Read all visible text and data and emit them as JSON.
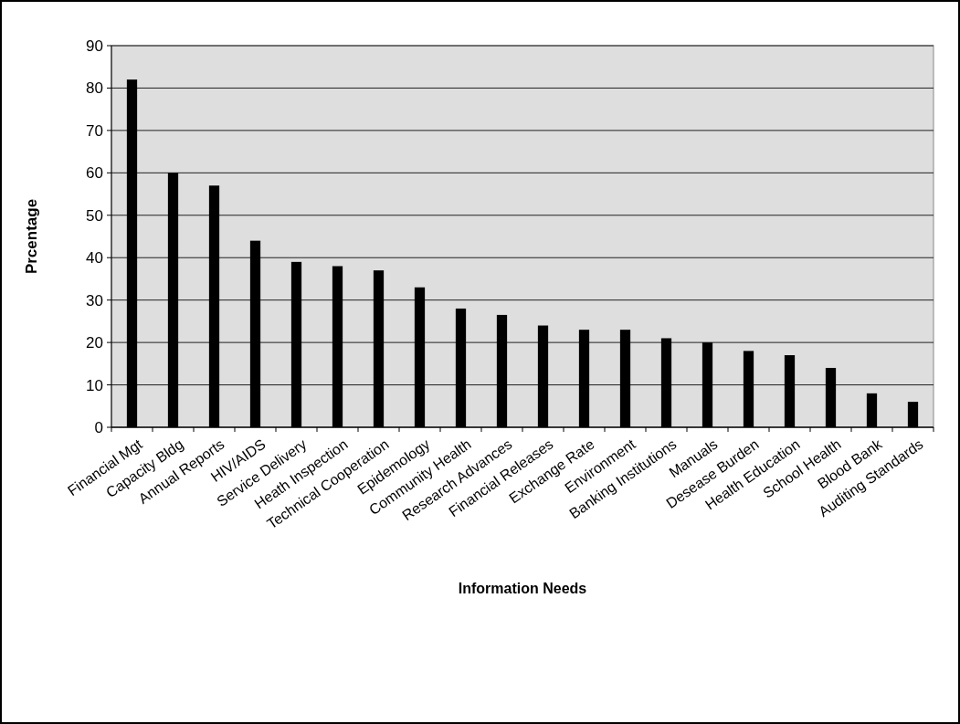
{
  "chart_data": {
    "type": "bar",
    "xlabel": "Information Needs",
    "ylabel": "Prcentage",
    "categories": [
      "Financial Mgt",
      "Capacity Bldg",
      "Annual Reports",
      "HIV/AIDS",
      "Service Delivery",
      "Heath Inspection",
      "Technical Cooperation",
      "Epidemology",
      "Community Health",
      "Research Advances",
      "Financial Releases",
      "Exchange Rate",
      "Environment",
      "Banking Institutions",
      "Manuals",
      "Desease Burden",
      "Health Education",
      "School Health",
      "Blood Bank",
      "Auditing Standards"
    ],
    "values": [
      82,
      60,
      57,
      44,
      39,
      38,
      37,
      33,
      28,
      26.5,
      24,
      23,
      23,
      21,
      20,
      18,
      17,
      14,
      8,
      6
    ],
    "color": "#000000",
    "ylim": [
      0,
      90
    ],
    "yticks": [
      0,
      10,
      20,
      30,
      40,
      50,
      60,
      70,
      80,
      90
    ],
    "grid": "y"
  }
}
